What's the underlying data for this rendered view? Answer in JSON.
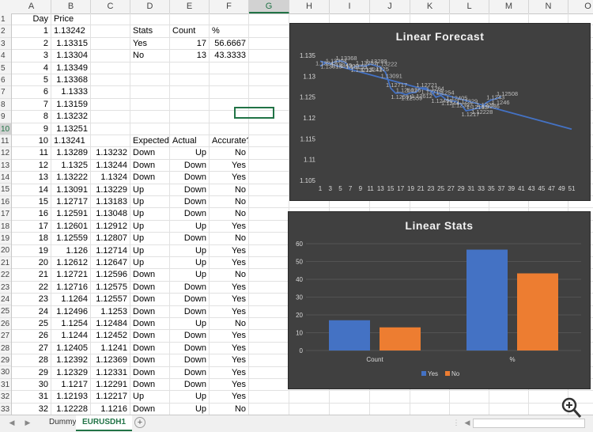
{
  "columns": [
    "A",
    "B",
    "C",
    "D",
    "E",
    "F",
    "G",
    "H",
    "I",
    "J",
    "K",
    "L",
    "M",
    "N",
    "O"
  ],
  "selected_column": "G",
  "selected_row": 10,
  "rows": [
    [
      "Day",
      "Price",
      "",
      "",
      "",
      "",
      "",
      "",
      "",
      "",
      "",
      "",
      "",
      "",
      ""
    ],
    [
      "1",
      "1.13242",
      "",
      "Stats",
      "Count",
      "%",
      "",
      "",
      "",
      "",
      "",
      "",
      "",
      "",
      ""
    ],
    [
      "2",
      "1.13315",
      "",
      "Yes",
      "17",
      "56.6667",
      "",
      "",
      "",
      "",
      "",
      "",
      "",
      "",
      ""
    ],
    [
      "3",
      "1.13304",
      "",
      "No",
      "13",
      "43.3333",
      "",
      "",
      "",
      "",
      "",
      "",
      "",
      "",
      ""
    ],
    [
      "4",
      "1.13349",
      "",
      "",
      "",
      "",
      "",
      "",
      "",
      "",
      "",
      "",
      "",
      "",
      ""
    ],
    [
      "5",
      "1.13368",
      "",
      "",
      "",
      "",
      "",
      "",
      "",
      "",
      "",
      "",
      "",
      "",
      ""
    ],
    [
      "6",
      "1.1333",
      "",
      "",
      "",
      "",
      "",
      "",
      "",
      "",
      "",
      "",
      "",
      "",
      ""
    ],
    [
      "7",
      "1.13159",
      "",
      "",
      "",
      "",
      "",
      "",
      "",
      "",
      "",
      "",
      "",
      "",
      ""
    ],
    [
      "8",
      "1.13232",
      "",
      "",
      "",
      "",
      "",
      "",
      "",
      "",
      "",
      "",
      "",
      "",
      ""
    ],
    [
      "9",
      "1.13251",
      "",
      "",
      "",
      "",
      "",
      "",
      "",
      "",
      "",
      "",
      "",
      "",
      ""
    ],
    [
      "10",
      "1.13241",
      "",
      "Expected",
      "Actual",
      "Accurate?",
      "",
      "",
      "",
      "",
      "",
      "",
      "",
      "",
      ""
    ],
    [
      "11",
      "1.13289",
      "1.13232",
      "Down",
      "Up",
      "No",
      "",
      "",
      "",
      "",
      "",
      "",
      "",
      "",
      ""
    ],
    [
      "12",
      "1.1325",
      "1.13244",
      "Down",
      "Down",
      "Yes",
      "",
      "",
      "",
      "",
      "",
      "",
      "",
      "",
      ""
    ],
    [
      "13",
      "1.13222",
      "1.1324",
      "Down",
      "Down",
      "Yes",
      "",
      "",
      "",
      "",
      "",
      "",
      "",
      "",
      ""
    ],
    [
      "14",
      "1.13091",
      "1.13229",
      "Up",
      "Down",
      "No",
      "",
      "",
      "",
      "",
      "",
      "",
      "",
      "",
      ""
    ],
    [
      "15",
      "1.12717",
      "1.13183",
      "Up",
      "Down",
      "No",
      "",
      "",
      "",
      "",
      "",
      "",
      "",
      "",
      ""
    ],
    [
      "16",
      "1.12591",
      "1.13048",
      "Up",
      "Down",
      "No",
      "",
      "",
      "",
      "",
      "",
      "",
      "",
      "",
      ""
    ],
    [
      "17",
      "1.12601",
      "1.12912",
      "Up",
      "Up",
      "Yes",
      "",
      "",
      "",
      "",
      "",
      "",
      "",
      "",
      ""
    ],
    [
      "18",
      "1.12559",
      "1.12807",
      "Up",
      "Down",
      "No",
      "",
      "",
      "",
      "",
      "",
      "",
      "",
      "",
      ""
    ],
    [
      "19",
      "1.126",
      "1.12714",
      "Up",
      "Up",
      "Yes",
      "",
      "",
      "",
      "",
      "",
      "",
      "",
      "",
      ""
    ],
    [
      "20",
      "1.12612",
      "1.12647",
      "Up",
      "Up",
      "Yes",
      "",
      "",
      "",
      "",
      "",
      "",
      "",
      "",
      ""
    ],
    [
      "21",
      "1.12721",
      "1.12596",
      "Down",
      "Up",
      "No",
      "",
      "",
      "",
      "",
      "",
      "",
      "",
      "",
      ""
    ],
    [
      "22",
      "1.12716",
      "1.12575",
      "Down",
      "Down",
      "Yes",
      "",
      "",
      "",
      "",
      "",
      "",
      "",
      "",
      ""
    ],
    [
      "23",
      "1.1264",
      "1.12557",
      "Down",
      "Down",
      "Yes",
      "",
      "",
      "",
      "",
      "",
      "",
      "",
      "",
      ""
    ],
    [
      "24",
      "1.12496",
      "1.1253",
      "Down",
      "Down",
      "Yes",
      "",
      "",
      "",
      "",
      "",
      "",
      "",
      "",
      ""
    ],
    [
      "25",
      "1.1254",
      "1.12484",
      "Down",
      "Up",
      "No",
      "",
      "",
      "",
      "",
      "",
      "",
      "",
      "",
      ""
    ],
    [
      "26",
      "1.1244",
      "1.12452",
      "Down",
      "Down",
      "Yes",
      "",
      "",
      "",
      "",
      "",
      "",
      "",
      "",
      ""
    ],
    [
      "27",
      "1.12405",
      "1.1241",
      "Down",
      "Down",
      "Yes",
      "",
      "",
      "",
      "",
      "",
      "",
      "",
      "",
      ""
    ],
    [
      "28",
      "1.12392",
      "1.12369",
      "Down",
      "Down",
      "Yes",
      "",
      "",
      "",
      "",
      "",
      "",
      "",
      "",
      ""
    ],
    [
      "29",
      "1.12329",
      "1.12331",
      "Down",
      "Down",
      "Yes",
      "",
      "",
      "",
      "",
      "",
      "",
      "",
      "",
      ""
    ],
    [
      "30",
      "1.1217",
      "1.12291",
      "Down",
      "Down",
      "Yes",
      "",
      "",
      "",
      "",
      "",
      "",
      "",
      "",
      ""
    ],
    [
      "31",
      "1.12193",
      "1.12217",
      "Up",
      "Up",
      "Yes",
      "",
      "",
      "",
      "",
      "",
      "",
      "",
      "",
      ""
    ],
    [
      "32",
      "1.12228",
      "1.1216",
      "Down",
      "Up",
      "No",
      "",
      "",
      "",
      "",
      "",
      "",
      "",
      "",
      ""
    ]
  ],
  "tabs": {
    "first": "Dummy",
    "second": "EURUSDH1"
  },
  "chart_data": [
    {
      "type": "line",
      "title": "Linear Forecast",
      "x": [
        1,
        2,
        3,
        4,
        5,
        6,
        7,
        8,
        9,
        10,
        11,
        12,
        13,
        14,
        15,
        16,
        17,
        18,
        19,
        20,
        21,
        22,
        23,
        24,
        25,
        26,
        27,
        28,
        29,
        30,
        31,
        32,
        33,
        34,
        35,
        36,
        37
      ],
      "series": [
        {
          "values": [
            1.13242,
            1.13315,
            1.13304,
            1.13349,
            1.13368,
            1.1333,
            1.13159,
            1.13232,
            1.13251,
            1.13241,
            1.13289,
            1.1325,
            1.13222,
            1.13091,
            1.12717,
            1.12591,
            1.12601,
            1.12559,
            1.126,
            1.12612,
            1.12721,
            1.12716,
            1.1264,
            1.12496,
            1.1254,
            1.1244,
            1.12405,
            1.12392,
            1.12329,
            1.1217,
            1.12193,
            1.12228,
            1.1225,
            1.1236,
            1.1243,
            1.1246,
            1.12508
          ]
        }
      ],
      "trend": {
        "x": [
          1,
          51
        ],
        "y": [
          1.1336,
          1.1173
        ]
      },
      "ylim": [
        1.105,
        1.135
      ],
      "yticks": [
        "1.105",
        "1.11",
        "1.115",
        "1.12",
        "1.125",
        "1.13",
        "1.135"
      ],
      "xticks": [
        "1",
        "3",
        "5",
        "7",
        "9",
        "11",
        "13",
        "15",
        "17",
        "19",
        "21",
        "23",
        "25",
        "27",
        "29",
        "31",
        "33",
        "35",
        "37",
        "39",
        "41",
        "43",
        "45",
        "47",
        "49",
        "51"
      ],
      "xmax": 51,
      "line_color": "#4472c4"
    },
    {
      "type": "bar",
      "title": "Linear Stats",
      "categories": [
        "Count",
        "%"
      ],
      "series": [
        {
          "name": "Yes",
          "values": [
            17,
            56.6667
          ],
          "color": "#4472c4"
        },
        {
          "name": "No",
          "values": [
            13,
            43.3333
          ],
          "color": "#ed7d31"
        }
      ],
      "ylim": [
        0,
        60
      ],
      "yticks": [
        "0",
        "10",
        "20",
        "30",
        "40",
        "50",
        "60"
      ],
      "legend": "bottom"
    }
  ]
}
